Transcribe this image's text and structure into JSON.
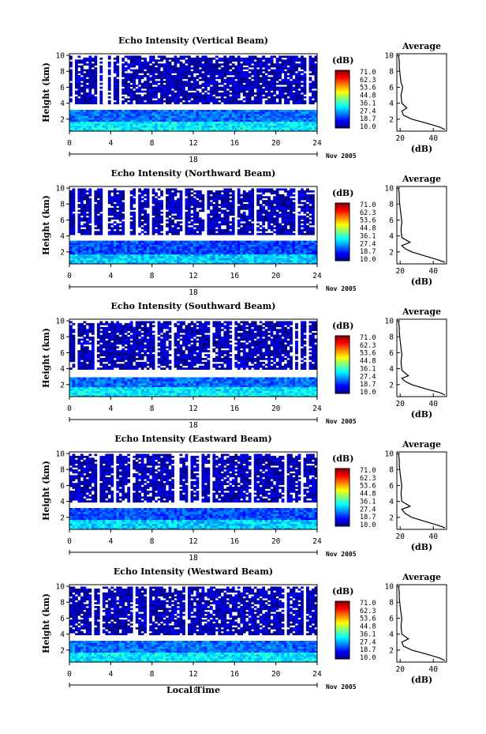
{
  "panels": [
    {
      "title": "Echo Intensity (Vertical Beam)",
      "beam": "vertical"
    },
    {
      "title": "Echo Intensity (Northward Beam)",
      "beam": "northward"
    },
    {
      "title": "Echo Intensity (Southward Beam)",
      "beam": "southward"
    },
    {
      "title": "Echo Intensity (Eastward Beam)",
      "beam": "eastward"
    },
    {
      "title": "Echo Intensity (Westward Beam)",
      "beam": "westward"
    }
  ],
  "shared": {
    "ylabel": "Height (km)",
    "xlabel": "Local Time",
    "date_label": "Nov 2005",
    "day_label": "18",
    "colorbar_unit": "(dB)",
    "colorbar_ticks": [
      "71.0",
      "62.3",
      "53.6",
      "44.8",
      "36.1",
      "27.4",
      "18.7",
      "10.0"
    ],
    "avg_title": "Average",
    "avg_xlabel": "(dB)"
  },
  "chart_data": [
    {
      "type": "heatmap",
      "title": "Echo Intensity (Vertical Beam)",
      "xlabel": "",
      "ylabel": "Height (km)",
      "xlim": [
        0,
        24
      ],
      "ylim": [
        0.5,
        10.2
      ],
      "xticks": [
        0,
        4,
        8,
        12,
        16,
        20,
        24
      ],
      "yticks": [
        2,
        4,
        6,
        8,
        10
      ],
      "colorbar": {
        "label": "(dB)",
        "range": [
          10.0,
          71.0
        ]
      },
      "layers": [
        {
          "height_km": [
            0.5,
            1.6
          ],
          "dB": 32
        },
        {
          "height_km": [
            1.6,
            3.2
          ],
          "dB": 24
        },
        {
          "height_km": [
            3.2,
            4.0
          ],
          "dB": null
        },
        {
          "height_km": [
            4.0,
            10.0
          ],
          "dB": 13
        }
      ]
    },
    {
      "type": "line",
      "title": "Average",
      "xlabel": "(dB)",
      "ylabel": "",
      "xlim": [
        18,
        48
      ],
      "ylim": [
        0.5,
        10.2
      ],
      "xticks": [
        20,
        40
      ],
      "yticks": [
        2,
        4,
        6,
        8,
        10
      ],
      "series": [
        {
          "x": [
            47,
            44,
            36,
            27,
            22,
            21,
            24,
            21,
            20.5,
            21.5,
            20.5,
            20,
            19.5,
            19.5,
            19
          ],
          "y": [
            0.7,
            1.0,
            1.5,
            2.0,
            2.5,
            3.0,
            3.4,
            4.0,
            5.0,
            6.0,
            6.6,
            7.5,
            8.5,
            9.2,
            10.0
          ]
        }
      ]
    },
    {
      "type": "heatmap",
      "title": "Echo Intensity (Northward Beam)",
      "xlabel": "",
      "ylabel": "Height (km)",
      "xlim": [
        0,
        24
      ],
      "ylim": [
        0.5,
        10.2
      ],
      "xticks": [
        0,
        4,
        8,
        12,
        16,
        20,
        24
      ],
      "yticks": [
        2,
        4,
        6,
        8,
        10
      ],
      "colorbar": {
        "label": "(dB)",
        "range": [
          10.0,
          71.0
        ]
      },
      "layers": [
        {
          "height_km": [
            0.5,
            1.6
          ],
          "dB": 30
        },
        {
          "height_km": [
            1.6,
            3.3
          ],
          "dB": 22
        },
        {
          "height_km": [
            3.3,
            4.2
          ],
          "dB": null
        },
        {
          "height_km": [
            4.2,
            10.0
          ],
          "dB": 13
        }
      ]
    },
    {
      "type": "line",
      "title": "Average",
      "xlabel": "(dB)",
      "ylabel": "",
      "xlim": [
        18,
        48
      ],
      "ylim": [
        0.5,
        10.2
      ],
      "xticks": [
        20,
        40
      ],
      "yticks": [
        2,
        4,
        6,
        8,
        10
      ],
      "series": [
        {
          "x": [
            47,
            43,
            35,
            27,
            23,
            21,
            26,
            21,
            20.5,
            21,
            20.5,
            20,
            19.5,
            19.5,
            19
          ],
          "y": [
            0.7,
            1.0,
            1.5,
            2.0,
            2.4,
            2.8,
            3.2,
            3.8,
            4.8,
            5.8,
            6.6,
            7.5,
            8.5,
            9.2,
            10.0
          ]
        }
      ]
    },
    {
      "type": "heatmap",
      "title": "Echo Intensity (Southward Beam)",
      "xlabel": "",
      "ylabel": "Height (km)",
      "xlim": [
        0,
        24
      ],
      "ylim": [
        0.5,
        10.2
      ],
      "xticks": [
        0,
        4,
        8,
        12,
        16,
        20,
        24
      ],
      "yticks": [
        2,
        4,
        6,
        8,
        10
      ],
      "colorbar": {
        "label": "(dB)",
        "range": [
          10.0,
          71.0
        ]
      },
      "layers": [
        {
          "height_km": [
            0.5,
            1.6
          ],
          "dB": 32
        },
        {
          "height_km": [
            1.6,
            3.0
          ],
          "dB": 24
        },
        {
          "height_km": [
            3.0,
            4.0
          ],
          "dB": null
        },
        {
          "height_km": [
            4.0,
            10.0
          ],
          "dB": 13
        }
      ]
    },
    {
      "type": "line",
      "title": "Average",
      "xlabel": "(dB)",
      "ylabel": "",
      "xlim": [
        18,
        48
      ],
      "ylim": [
        0.5,
        10.2
      ],
      "xticks": [
        20,
        40
      ],
      "yticks": [
        2,
        4,
        6,
        8,
        10
      ],
      "series": [
        {
          "x": [
            47,
            44,
            35,
            27,
            23,
            21,
            25,
            21,
            20.5,
            21,
            20.5,
            20,
            19.5,
            19.5,
            19
          ],
          "y": [
            0.7,
            1.0,
            1.5,
            2.0,
            2.4,
            2.8,
            3.1,
            3.8,
            4.8,
            5.8,
            6.6,
            7.5,
            8.5,
            9.2,
            10.0
          ]
        }
      ]
    },
    {
      "type": "heatmap",
      "title": "Echo Intensity (Eastward Beam)",
      "xlabel": "",
      "ylabel": "Height (km)",
      "xlim": [
        0,
        24
      ],
      "ylim": [
        0.5,
        10.2
      ],
      "xticks": [
        0,
        4,
        8,
        12,
        16,
        20,
        24
      ],
      "yticks": [
        2,
        4,
        6,
        8,
        10
      ],
      "colorbar": {
        "label": "(dB)",
        "range": [
          10.0,
          71.0
        ]
      },
      "layers": [
        {
          "height_km": [
            0.5,
            1.6
          ],
          "dB": 30
        },
        {
          "height_km": [
            1.6,
            3.2
          ],
          "dB": 22
        },
        {
          "height_km": [
            3.2,
            4.0
          ],
          "dB": null
        },
        {
          "height_km": [
            4.0,
            10.0
          ],
          "dB": 13
        }
      ]
    },
    {
      "type": "line",
      "title": "Average",
      "xlabel": "(dB)",
      "ylabel": "",
      "xlim": [
        18,
        48
      ],
      "ylim": [
        0.5,
        10.2
      ],
      "xticks": [
        20,
        40
      ],
      "yticks": [
        2,
        4,
        6,
        8,
        10
      ],
      "series": [
        {
          "x": [
            47,
            43,
            35,
            27,
            23,
            21,
            26,
            21,
            20.5,
            21,
            20.5,
            20,
            19.5,
            19.5,
            19
          ],
          "y": [
            0.7,
            1.0,
            1.5,
            2.0,
            2.5,
            3.0,
            3.4,
            4.0,
            5.0,
            6.0,
            6.6,
            7.5,
            8.5,
            9.2,
            10.0
          ]
        }
      ]
    },
    {
      "type": "heatmap",
      "title": "Echo Intensity (Westward Beam)",
      "xlabel": "Local Time",
      "ylabel": "Height (km)",
      "xlim": [
        0,
        24
      ],
      "ylim": [
        0.5,
        10.2
      ],
      "xticks": [
        0,
        4,
        8,
        12,
        16,
        20,
        24
      ],
      "yticks": [
        2,
        4,
        6,
        8,
        10
      ],
      "colorbar": {
        "label": "(dB)",
        "range": [
          10.0,
          71.0
        ]
      },
      "layers": [
        {
          "height_km": [
            0.5,
            1.6
          ],
          "dB": 32
        },
        {
          "height_km": [
            1.6,
            3.2
          ],
          "dB": 24
        },
        {
          "height_km": [
            3.2,
            4.0
          ],
          "dB": null
        },
        {
          "height_km": [
            4.0,
            10.0
          ],
          "dB": 13
        }
      ]
    },
    {
      "type": "line",
      "title": "Average",
      "xlabel": "(dB)",
      "ylabel": "",
      "xlim": [
        18,
        48
      ],
      "ylim": [
        0.5,
        10.2
      ],
      "xticks": [
        20,
        40
      ],
      "yticks": [
        2,
        4,
        6,
        8,
        10
      ],
      "series": [
        {
          "x": [
            47,
            44,
            36,
            27,
            22,
            21,
            25,
            21,
            20.5,
            21,
            20.5,
            20,
            19.5,
            19.5,
            19
          ],
          "y": [
            0.7,
            1.0,
            1.5,
            2.0,
            2.5,
            3.0,
            3.4,
            4.0,
            5.0,
            6.0,
            6.6,
            7.5,
            8.5,
            9.2,
            10.0
          ]
        }
      ]
    }
  ]
}
